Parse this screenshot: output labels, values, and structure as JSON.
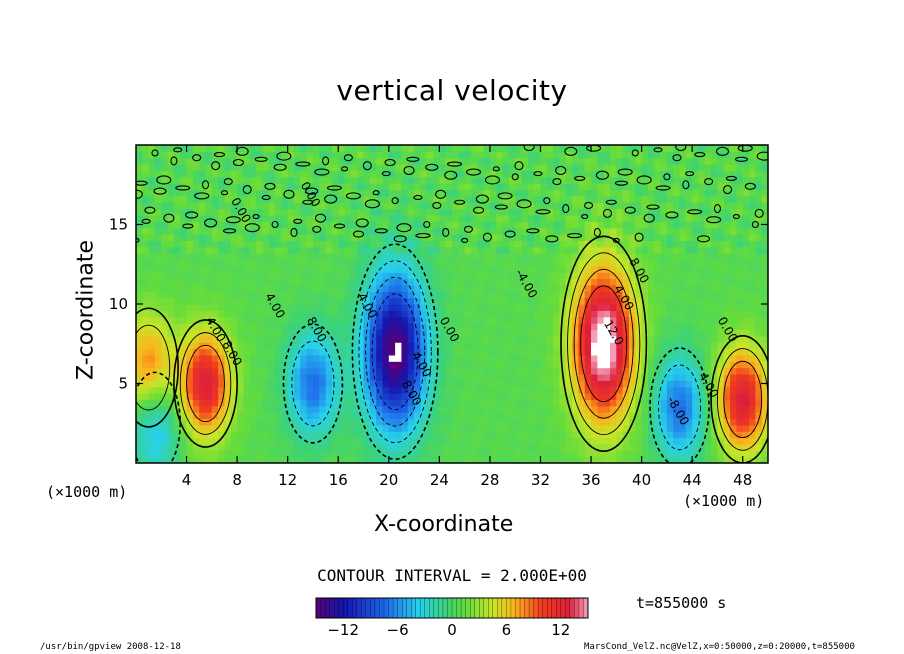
{
  "chart_data": {
    "type": "heatmap",
    "title": "vertical velocity",
    "xlabel": "X-coordinate",
    "ylabel": "Z-coordinate",
    "x_unit_left": "(×1000 m)",
    "x_unit_right": "(×1000 m)",
    "xlim": [
      0,
      50
    ],
    "ylim": [
      0,
      20
    ],
    "x_ticks": [
      "4",
      "8",
      "12",
      "16",
      "20",
      "24",
      "28",
      "32",
      "36",
      "40",
      "44",
      "48"
    ],
    "y_ticks": [
      "5",
      "10",
      "15"
    ],
    "contour_interval_text": "CONTOUR INTERVAL = 2.000E+00",
    "contour_labels": [
      "4.00",
      "8.00",
      "4.00",
      "8.00",
      "4.00",
      "8.00",
      "12.0",
      "4.00",
      "8.00",
      "4.00",
      "0.00",
      "0.00",
      "0.00",
      "0.00",
      "-4.00",
      "-8.00",
      "4.00"
    ],
    "colorbar": {
      "min": -15,
      "max": 15,
      "tick_labels": [
        "−12",
        "−6",
        "0",
        "6",
        "12"
      ],
      "tick_values": [
        -12,
        -6,
        0,
        6,
        12
      ]
    },
    "features": [
      {
        "name": "updraft",
        "x": 5.5,
        "z": 5,
        "peak": 12
      },
      {
        "name": "downdraft",
        "x": 14,
        "z": 5,
        "peak": -8
      },
      {
        "name": "strong downdraft",
        "x": 20.5,
        "z": 7,
        "peak": -16
      },
      {
        "name": "strong updraft",
        "x": 37,
        "z": 7.5,
        "peak": 16
      },
      {
        "name": "downdraft",
        "x": 43,
        "z": 3.5,
        "peak": -8
      },
      {
        "name": "updraft",
        "x": 48,
        "z": 4,
        "peak": 12
      },
      {
        "name": "updraft",
        "x": 1,
        "z": 6,
        "peak": 8
      },
      {
        "name": "downdraft",
        "x": 1.5,
        "z": 2.5,
        "peak": -6
      }
    ],
    "time_label": "t=855000 s",
    "footer_left": "/usr/bin/gpview   2008-12-18",
    "footer_right": "MarsCond_VelZ.nc@VelZ,x=0:50000,z=0:20000,t=855000"
  }
}
